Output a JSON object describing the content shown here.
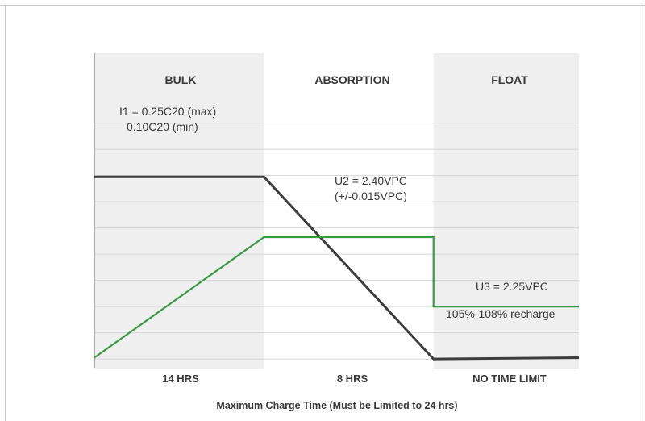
{
  "chart_data": {
    "type": "line",
    "phases": [
      {
        "label": "BULK",
        "duration": "14 HRS",
        "start": 0,
        "end": 14,
        "shaded": true
      },
      {
        "label": "ABSORPTION",
        "duration": "8 HRS",
        "start": 14,
        "end": 28,
        "shaded": false
      },
      {
        "label": "FLOAT",
        "duration": "NO TIME LIMIT",
        "start": 28,
        "end": 40,
        "shaded": true
      }
    ],
    "xlabel": "Maximum Charge Time (Must be Limited to 24 hrs)",
    "xlim": [
      0,
      40
    ],
    "ylim": [
      0,
      10
    ],
    "grid": true,
    "gridlines_y": [
      0.15,
      1.15,
      2.15,
      3.15,
      4.15,
      5.15,
      6.15,
      7.15,
      8.15,
      9.15
    ],
    "series": [
      {
        "color": "#3d3d3d",
        "points": [
          [
            0,
            7.1
          ],
          [
            14,
            7.1
          ],
          [
            28,
            0.15
          ],
          [
            40,
            0.2
          ]
        ]
      },
      {
        "color": "#3a9a44",
        "points": [
          [
            0,
            0.2
          ],
          [
            14,
            4.8
          ],
          [
            28,
            4.8
          ],
          [
            28,
            2.15
          ],
          [
            40,
            2.15
          ]
        ]
      }
    ],
    "annotations": [
      {
        "id": "i1_max",
        "text": "I1 = 0.25C20 (max)"
      },
      {
        "id": "i1_min",
        "text": "0.10C20 (min)"
      },
      {
        "id": "u2",
        "text": "U2 = 2.40VPC"
      },
      {
        "id": "u2_tol",
        "text": "(+/-0.015VPC)"
      },
      {
        "id": "u3",
        "text": "U3 = 2.25VPC"
      },
      {
        "id": "recharge",
        "text": "105%-108% recharge"
      }
    ]
  }
}
